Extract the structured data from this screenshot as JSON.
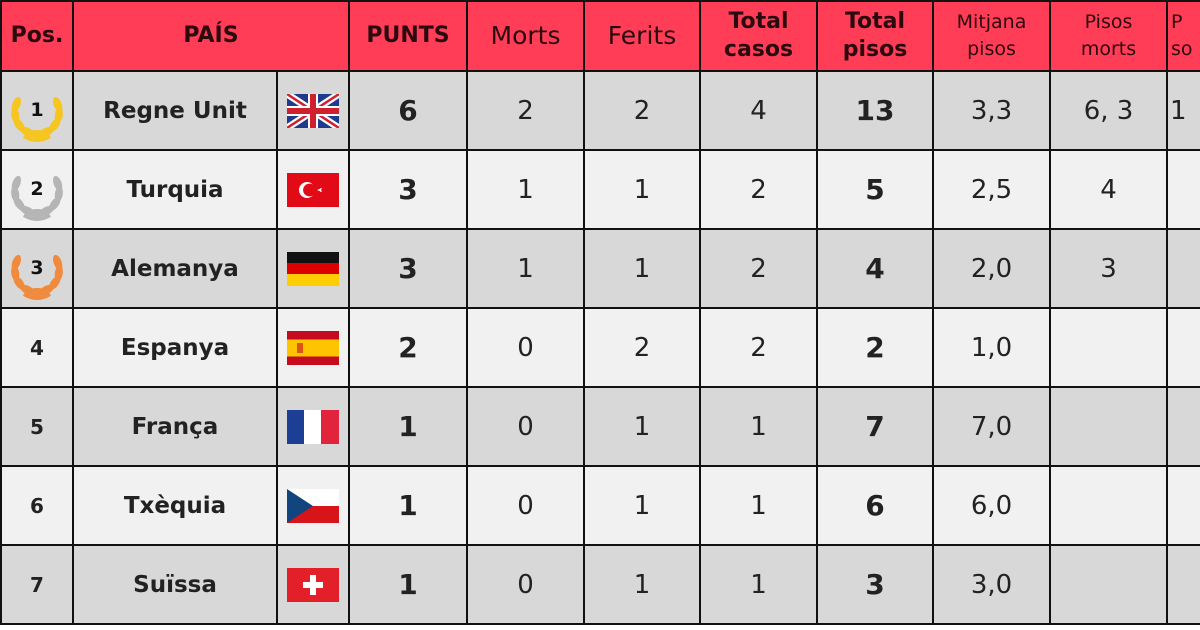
{
  "headers": {
    "pos": "Pos.",
    "country": "PAÍS",
    "points": "PUNTS",
    "deaths": "Morts",
    "injured": "Ferits",
    "total_cases_1": "Total",
    "total_cases_2": "casos",
    "total_floors_1": "Total",
    "total_floors_2": "pisos",
    "avg_floors_1": "Mitjana",
    "avg_floors_2": "pisos",
    "death_floors_1": "Pisos",
    "death_floors_2": "morts",
    "cut_1": "P",
    "cut_2": "so"
  },
  "colors": {
    "header": "#ff3d57",
    "gold": "#f7c520",
    "silver": "#b5b5b5",
    "bronze": "#f08a3c"
  },
  "rows": [
    {
      "pos": "1",
      "medal": "gold",
      "country": "Regne Unit",
      "flag": "uk-flag-icon",
      "points": "6",
      "deaths": "2",
      "injured": "2",
      "cases": "4",
      "floors": "13",
      "avg": "3,3",
      "death_floors": "6, 3",
      "cut": "1"
    },
    {
      "pos": "2",
      "medal": "silver",
      "country": "Turquia",
      "flag": "turkey-flag-icon",
      "points": "3",
      "deaths": "1",
      "injured": "1",
      "cases": "2",
      "floors": "5",
      "avg": "2,5",
      "death_floors": "4",
      "cut": ""
    },
    {
      "pos": "3",
      "medal": "bronze",
      "country": "Alemanya",
      "flag": "germany-flag-icon",
      "points": "3",
      "deaths": "1",
      "injured": "1",
      "cases": "2",
      "floors": "4",
      "avg": "2,0",
      "death_floors": "3",
      "cut": ""
    },
    {
      "pos": "4",
      "medal": "",
      "country": "Espanya",
      "flag": "spain-flag-icon",
      "points": "2",
      "deaths": "0",
      "injured": "2",
      "cases": "2",
      "floors": "2",
      "avg": "1,0",
      "death_floors": "",
      "cut": ""
    },
    {
      "pos": "5",
      "medal": "",
      "country": "França",
      "flag": "france-flag-icon",
      "points": "1",
      "deaths": "0",
      "injured": "1",
      "cases": "1",
      "floors": "7",
      "avg": "7,0",
      "death_floors": "",
      "cut": ""
    },
    {
      "pos": "6",
      "medal": "",
      "country": "Txèquia",
      "flag": "czech-flag-icon",
      "points": "1",
      "deaths": "0",
      "injured": "1",
      "cases": "1",
      "floors": "6",
      "avg": "6,0",
      "death_floors": "",
      "cut": ""
    },
    {
      "pos": "7",
      "medal": "",
      "country": "Suïssa",
      "flag": "switzerland-flag-icon",
      "points": "1",
      "deaths": "0",
      "injured": "1",
      "cases": "1",
      "floors": "3",
      "avg": "3,0",
      "death_floors": "",
      "cut": ""
    }
  ]
}
